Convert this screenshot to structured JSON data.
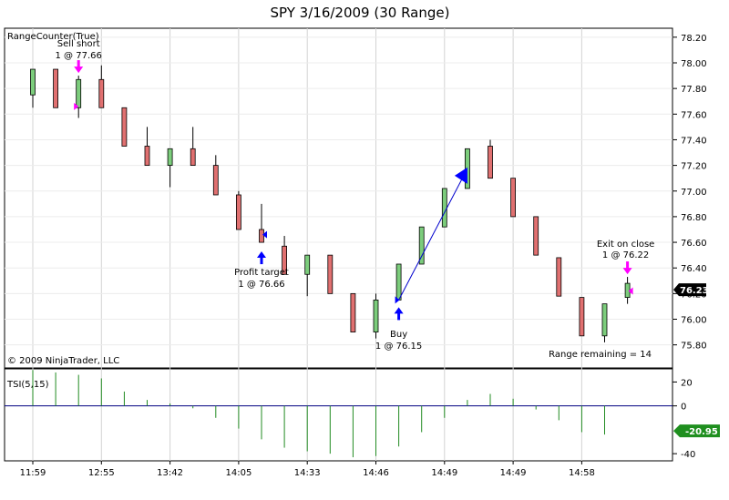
{
  "header": {
    "title": "SPY  3/16/2009 (30 Range)"
  },
  "price_panel": {
    "indicator_label": "RangeCounter(True)",
    "copyright": "© 2009 NinjaTrader, LLC",
    "range_remaining": "Range remaining = 14"
  },
  "tsi_panel": {
    "indicator_label": "TSI(5,15)"
  },
  "colors": {
    "up_candle": "#7ccd7c",
    "down_candle": "#e07070",
    "tsi_bar": "#228b22",
    "tsi_badge": "#1f8f1f",
    "tsi_zero": "#000080",
    "trade_line": "#0000cd",
    "entry_arrow": "#ff00ff",
    "target_arrow": "#0000ff",
    "grid": "#d3d3d3",
    "last_badge": "#000000"
  },
  "chart_data": [
    {
      "type": "candlestick",
      "title": "SPY  3/16/2009 (30 Range)",
      "ylim": [
        75.62,
        78.27
      ],
      "y_ticks": [
        "78.20",
        "78.00",
        "77.80",
        "77.60",
        "77.40",
        "77.20",
        "77.00",
        "76.80",
        "76.60",
        "76.40",
        "76.20",
        "76.00",
        "75.80"
      ],
      "x_ticks": [
        "11:59",
        "12:55",
        "13:42",
        "14:05",
        "14:33",
        "14:46",
        "14:49",
        "14:49",
        "14:58"
      ],
      "last_price": "76.23",
      "candles": [
        {
          "open": 77.75,
          "high": 77.95,
          "low": 77.65,
          "close": 77.95
        },
        {
          "open": 77.95,
          "high": 77.95,
          "low": 77.65,
          "close": 77.65
        },
        {
          "open": 77.65,
          "high": 77.9,
          "low": 77.57,
          "close": 77.87
        },
        {
          "open": 77.87,
          "high": 77.98,
          "low": 77.65,
          "close": 77.65
        },
        {
          "open": 77.65,
          "high": 77.65,
          "low": 77.35,
          "close": 77.35
        },
        {
          "open": 77.35,
          "high": 77.5,
          "low": 77.2,
          "close": 77.2
        },
        {
          "open": 77.2,
          "high": 77.33,
          "low": 77.03,
          "close": 77.33
        },
        {
          "open": 77.33,
          "high": 77.5,
          "low": 77.2,
          "close": 77.2
        },
        {
          "open": 77.2,
          "high": 77.28,
          "low": 76.97,
          "close": 76.97
        },
        {
          "open": 76.97,
          "high": 77.0,
          "low": 76.7,
          "close": 76.7
        },
        {
          "open": 76.7,
          "high": 76.9,
          "low": 76.6,
          "close": 76.6
        },
        {
          "open": 76.57,
          "high": 76.65,
          "low": 76.35,
          "close": 76.35
        },
        {
          "open": 76.35,
          "high": 76.5,
          "low": 76.18,
          "close": 76.5
        },
        {
          "open": 76.5,
          "high": 76.5,
          "low": 76.2,
          "close": 76.2
        },
        {
          "open": 76.2,
          "high": 76.2,
          "low": 75.9,
          "close": 75.9
        },
        {
          "open": 75.9,
          "high": 76.2,
          "low": 75.85,
          "close": 76.15
        },
        {
          "open": 76.15,
          "high": 76.43,
          "low": 76.15,
          "close": 76.43
        },
        {
          "open": 76.43,
          "high": 76.72,
          "low": 76.43,
          "close": 76.72
        },
        {
          "open": 76.72,
          "high": 77.02,
          "low": 76.72,
          "close": 77.02
        },
        {
          "open": 77.02,
          "high": 77.33,
          "low": 77.02,
          "close": 77.33
        },
        {
          "open": 77.35,
          "high": 77.4,
          "low": 77.1,
          "close": 77.1
        },
        {
          "open": 77.1,
          "high": 77.1,
          "low": 76.8,
          "close": 76.8
        },
        {
          "open": 76.8,
          "high": 76.8,
          "low": 76.5,
          "close": 76.5
        },
        {
          "open": 76.48,
          "high": 76.48,
          "low": 76.18,
          "close": 76.18
        },
        {
          "open": 76.17,
          "high": 76.17,
          "low": 75.87,
          "close": 75.87
        },
        {
          "open": 75.87,
          "high": 76.12,
          "low": 75.82,
          "close": 76.12
        },
        {
          "open": 76.17,
          "high": 76.33,
          "low": 76.12,
          "close": 76.28
        }
      ],
      "annotations": [
        {
          "candle": 2,
          "kind": "entry",
          "text": [
            "Sell short",
            "1 @ 77.66"
          ],
          "price": 77.66
        },
        {
          "candle": 10,
          "kind": "target",
          "text": [
            "Profit target",
            "1 @ 76.66"
          ],
          "price": 76.66
        },
        {
          "candle": 16,
          "kind": "buy",
          "text": [
            "Buy",
            "1 @ 76.15"
          ],
          "price": 76.15
        },
        {
          "candle": 26,
          "kind": "exit",
          "text": [
            "Exit on close",
            "1 @ 76.22"
          ],
          "price": 76.22
        }
      ],
      "trade_line": {
        "from_candle": 16,
        "from_price": 76.15,
        "to_candle": 19,
        "to_price": 77.12
      }
    },
    {
      "type": "bar",
      "title": "TSI(5,15)",
      "ylim": [
        -46,
        31
      ],
      "y_ticks": [
        20,
        0,
        -40
      ],
      "last_value": "-20.95",
      "values": [
        30,
        28,
        26,
        23,
        12,
        5,
        2,
        -2,
        -10,
        -19,
        -28,
        -35,
        -38,
        -40,
        -43,
        -42,
        -34,
        -22,
        -10,
        5,
        10,
        6,
        -3,
        -12,
        -22,
        -24,
        null
      ]
    }
  ]
}
